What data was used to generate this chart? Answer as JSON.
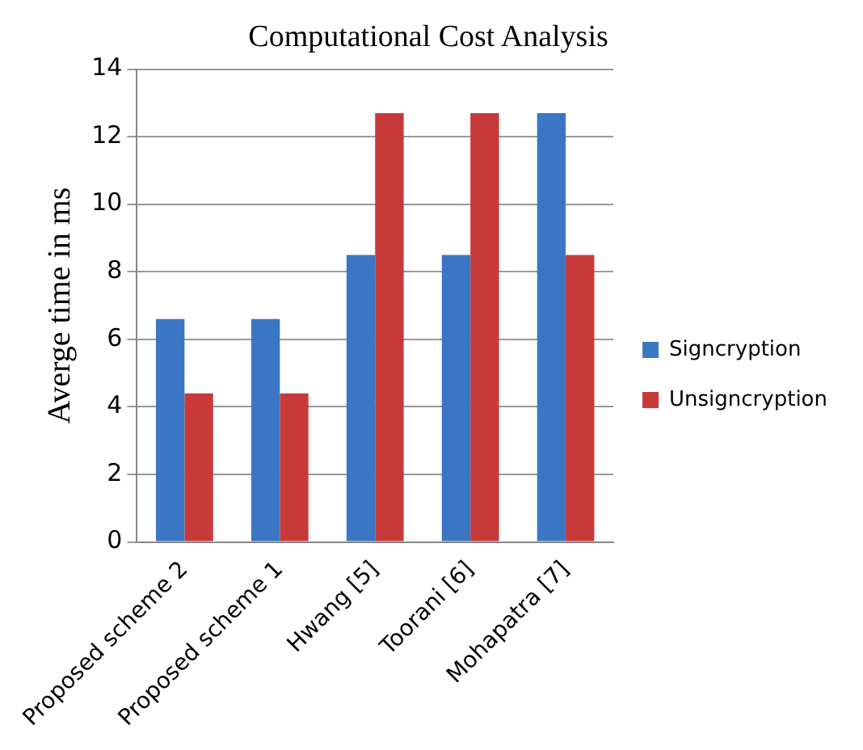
{
  "chart_data": {
    "type": "bar",
    "title": "Computational Cost Analysis",
    "ylabel": "Averge time in ms",
    "categories": [
      "Proposed scheme 2",
      "Proposed scheme 1",
      "Hwang [5]",
      "Toorani [6]",
      "Mohapatra [7]"
    ],
    "series": [
      {
        "name": "Signcryption",
        "color": "#3a76c4",
        "values": [
          6.6,
          6.6,
          8.5,
          8.5,
          12.7
        ]
      },
      {
        "name": "Unsigncryption",
        "color": "#c83a3a",
        "values": [
          4.4,
          4.4,
          12.7,
          12.7,
          8.5
        ]
      }
    ],
    "ylim": [
      0,
      14
    ],
    "yticks": [
      0,
      2,
      4,
      6,
      8,
      10,
      12,
      14
    ],
    "grid": "y",
    "legend": "right"
  }
}
